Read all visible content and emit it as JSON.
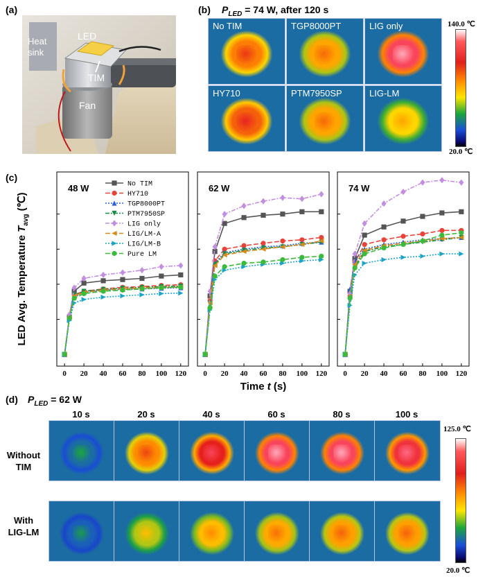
{
  "panel_labels": {
    "a": "(a)",
    "b": "(b)",
    "c": "(c)",
    "d": "(d)"
  },
  "photo": {
    "labels": {
      "led": "LED",
      "heat_sink_1": "Heat",
      "heat_sink_2": "sink",
      "tim": "TIM",
      "fan": "Fan"
    }
  },
  "panel_b": {
    "title_p": "P",
    "title_sub": "LED",
    "title_rest": " = 74 W, after 120 s",
    "cells": [
      {
        "label": "No TIM",
        "hot": 0.62
      },
      {
        "label": "TGP8000PT",
        "hot": 0.55
      },
      {
        "label": "LIG only",
        "hot": 0.85
      },
      {
        "label": "HY710",
        "hot": 0.66
      },
      {
        "label": "PTM7950SP",
        "hot": 0.55
      },
      {
        "label": "LIG-LM",
        "hot": 0.45
      }
    ],
    "colorbar": {
      "max": "140.0 ℃",
      "min": "20.0 ℃"
    }
  },
  "chart_data": {
    "type": "line",
    "ylabel_main": "LED Avg. Temperature ",
    "ylabel_sym": "T",
    "ylabel_sub": "avg",
    "ylabel_unit": " (℃)",
    "xlabel_main": "Time ",
    "xlabel_sym": "t",
    "xlabel_unit": " (s)",
    "x_ticks": [
      "0",
      "20",
      "40",
      "60",
      "80",
      "100",
      "120"
    ],
    "subplots": [
      {
        "title": "48 W",
        "series": [
          {
            "name": "No TIM",
            "values": [
              0,
              16,
              27,
              30.5,
              31.5,
              32,
              32.5,
              33.5,
              34
            ]
          },
          {
            "name": "HY710",
            "values": [
              0,
              16,
              25.5,
              27,
              28,
              28.7,
              29,
              29.5,
              29.8
            ]
          },
          {
            "name": "TGP8000PT",
            "values": [
              0,
              15.5,
              24.5,
              26.5,
              27.5,
              27.8,
              28,
              28.3,
              28.5
            ]
          },
          {
            "name": "PTM7950SP",
            "values": [
              0,
              16,
              25.5,
              27,
              27.8,
              28.3,
              28.6,
              29,
              29.2
            ]
          },
          {
            "name": "LIG only",
            "values": [
              0,
              17,
              28.5,
              32.5,
              34,
              35,
              36,
              37.5,
              38
            ]
          },
          {
            "name": "LIG/LM-A",
            "values": [
              0,
              16,
              25,
              26.5,
              27.5,
              28,
              28.4,
              28.6,
              28.8
            ]
          },
          {
            "name": "LIG/LM-B",
            "values": [
              0,
              14.5,
              22,
              23.5,
              24.5,
              25,
              25.5,
              26,
              26.2
            ]
          },
          {
            "name": "Pure LM",
            "values": [
              0,
              15.5,
              24,
              26,
              27,
              27.5,
              28,
              28.5,
              28.7
            ]
          }
        ]
      },
      {
        "title": "62 W",
        "series": [
          {
            "name": "No TIM",
            "values": [
              0,
              25,
              44,
              56,
              58.5,
              59.5,
              60,
              61,
              61
            ]
          },
          {
            "name": "HY710",
            "values": [
              0,
              23,
              40,
              45,
              46.5,
              47.5,
              48.5,
              49,
              50
            ]
          },
          {
            "name": "TGP8000PT",
            "values": [
              0,
              21,
              39,
              43.5,
              45,
              46,
              46.5,
              47.5,
              48
            ]
          },
          {
            "name": "PTM7950SP",
            "values": [
              0,
              22,
              38.5,
              43,
              44.5,
              45.5,
              46,
              47,
              48
            ]
          },
          {
            "name": "LIG only",
            "values": [
              0,
              27,
              46,
              60,
              63.5,
              65.5,
              67,
              66.5,
              68.5
            ]
          },
          {
            "name": "LIG/LM-A",
            "values": [
              0,
              22,
              38,
              42.5,
              44,
              45,
              46,
              47,
              48.5
            ]
          },
          {
            "name": "LIG/LM-B",
            "values": [
              0,
              19,
              32,
              36,
              37.5,
              38.5,
              39,
              40,
              40.5
            ]
          },
          {
            "name": "Pure LM",
            "values": [
              0,
              20,
              33.5,
              37.5,
              39,
              39.5,
              40.5,
              41.5,
              42
            ]
          }
        ]
      },
      {
        "title": "74 W",
        "series": [
          {
            "name": "No TIM",
            "values": [
              0,
              27,
              41,
              51,
              54.5,
              57,
              59,
              60.5,
              61
            ]
          },
          {
            "name": "HY710",
            "values": [
              0,
              25,
              39.5,
              47,
              49,
              50.5,
              51.5,
              53,
              53
            ]
          },
          {
            "name": "TGP8000PT",
            "values": [
              0,
              28,
              40,
              45,
              47,
              48,
              49,
              49.5,
              50
            ]
          },
          {
            "name": "PTM7950SP",
            "values": [
              0,
              24,
              37.5,
              44,
              46,
              47,
              48,
              49,
              50
            ]
          },
          {
            "name": "LIG only",
            "values": [
              0,
              26,
              43,
              56,
              64.5,
              69.5,
              73.5,
              74.5,
              73.5
            ]
          },
          {
            "name": "LIG/LM-A",
            "values": [
              0,
              25,
              38.5,
              44.5,
              46.5,
              47.5,
              48.5,
              49.5,
              50
            ]
          },
          {
            "name": "LIG/LM-B",
            "values": [
              0,
              21,
              34,
              39,
              40.5,
              41.5,
              42,
              43,
              43
            ]
          },
          {
            "name": "Pure LM",
            "values": [
              0,
              24,
              37,
              43,
              45.5,
              47,
              48.5,
              51,
              52
            ]
          }
        ]
      }
    ],
    "x": [
      0,
      5,
      10,
      20,
      40,
      60,
      80,
      100,
      120
    ],
    "xlim": [
      -8,
      128
    ],
    "ylim": [
      -5,
      78
    ],
    "grid": false,
    "legend_position": "top-left of first subplot",
    "legend": [
      {
        "name": "No TIM",
        "color": "#555555",
        "marker": "square",
        "dash": "solid"
      },
      {
        "name": "HY710",
        "color": "#e8433b",
        "marker": "circle",
        "dash": "longdash"
      },
      {
        "name": "TGP8000PT",
        "color": "#2a5fd8",
        "marker": "triangle-up",
        "dash": "dot"
      },
      {
        "name": "PTM7950SP",
        "color": "#1d8a4a",
        "marker": "triangle-down",
        "dash": "dashdot"
      },
      {
        "name": "LIG only",
        "color": "#c28ee0",
        "marker": "diamond",
        "dash": "dashdot"
      },
      {
        "name": "LIG/LM-A",
        "color": "#d68a1a",
        "marker": "triangle-left",
        "dash": "longdash"
      },
      {
        "name": "LIG/LM-B",
        "color": "#1aa3c7",
        "marker": "triangle-right",
        "dash": "dot"
      },
      {
        "name": "Pure LM",
        "color": "#3cba3c",
        "marker": "circle",
        "dash": "longdash"
      }
    ]
  },
  "panel_d": {
    "title_p": "P",
    "title_sub": "LED",
    "title_rest": " = 62 W",
    "times": [
      "10 s",
      "20 s",
      "40 s",
      "60 s",
      "80 s",
      "100 s"
    ],
    "rows": [
      {
        "label_1": "Without",
        "label_2": "TIM",
        "heat": [
          0.2,
          0.6,
          0.75,
          0.85,
          0.85,
          0.8
        ]
      },
      {
        "label_1": "With",
        "label_2": "LIG-LM",
        "heat": [
          0.18,
          0.4,
          0.5,
          0.54,
          0.56,
          0.56
        ]
      }
    ],
    "colorbar": {
      "max": "125.0 ℃",
      "min": "20.0 ℃"
    }
  }
}
